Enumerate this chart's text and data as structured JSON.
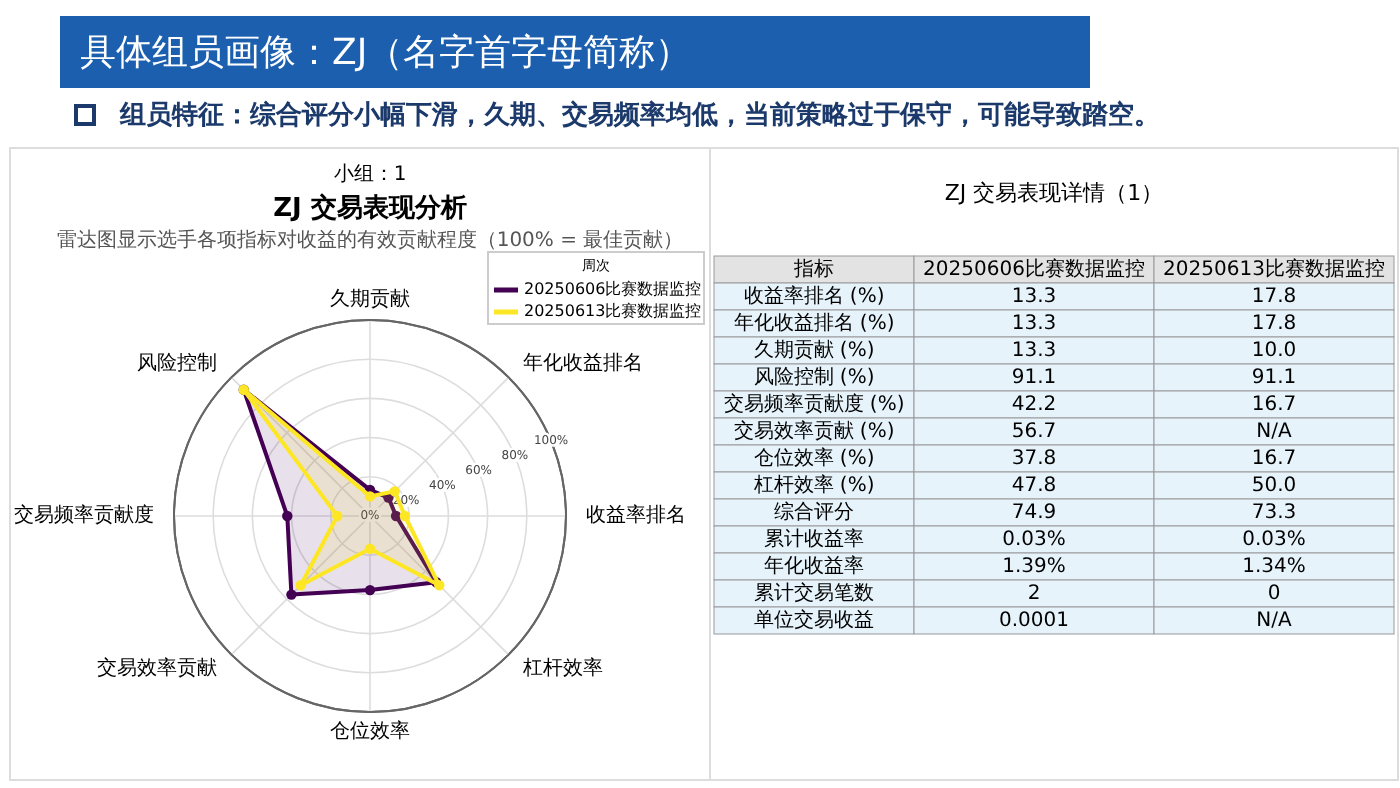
{
  "chart_data": [
    {
      "type": "radar",
      "title": "ZJ 交易表现分析",
      "subtitle": "雷达图显示选手各项指标对收益的有效贡献程度（100% = 最佳贡献）",
      "annotations": [
        "具体组员画像：ZJ（名字首字母简称）",
        "组员特征：综合评分小幅下滑，久期、交易频率均低，当前策略过于保守，可能导致踏空。",
        "小组：1"
      ],
      "categories": [
        "久期贡献",
        "年化收益排名",
        "收益率排名",
        "杠杆效率",
        "仓位效率",
        "交易效率贡献",
        "交易频率贡献度",
        "风险控制"
      ],
      "series": [
        {
          "name": "20250606比赛数据监控",
          "color": "#440154",
          "values": [
            13.3,
            13.3,
            13.3,
            47.8,
            37.8,
            56.7,
            42.2,
            91.1
          ]
        },
        {
          "name": "20250613比赛数据监控",
          "color": "#fde725",
          "values": [
            10.0,
            17.8,
            17.8,
            50.0,
            16.7,
            50,
            16.7,
            91.1
          ]
        }
      ],
      "ylim": [
        0,
        100
      ],
      "yticks": [
        {
          "value": 0,
          "label": "0%"
        },
        {
          "value": 20,
          "label": "20%"
        },
        {
          "value": 40,
          "label": "40%"
        },
        {
          "value": 60,
          "label": "60%"
        },
        {
          "value": 80,
          "label": "80%"
        },
        {
          "value": 100,
          "label": "100%"
        }
      ],
      "grid": true,
      "legend": "top right",
      "legend_title": "周次",
      "marker": "circle"
    },
    {
      "type": "other",
      "title": "ZJ 交易表现详情（1）",
      "categories": [
        "指标",
        "20250606比赛数据监控",
        "20250613比赛数据监控"
      ],
      "y_categories": [
        "收益率排名 (%)",
        "年化收益排名 (%)",
        "久期贡献 (%)",
        "风险控制 (%)",
        "交易频率贡献度 (%)",
        "交易效率贡献 (%)",
        "仓位效率 (%)",
        "杠杆效率 (%)",
        "综合评分",
        "累计收益率",
        "年化收益率",
        "累计交易笔数",
        "单位交易收益"
      ],
      "cell_labels": [
        [
          "13.3",
          "17.8"
        ],
        [
          "13.3",
          "17.8"
        ],
        [
          "13.3",
          "10.0"
        ],
        [
          "91.1",
          "91.1"
        ],
        [
          "42.2",
          "16.7"
        ],
        [
          "56.7",
          "N/A"
        ],
        [
          "37.8",
          "16.7"
        ],
        [
          "47.8",
          "50.0"
        ],
        [
          "74.9",
          "73.3"
        ],
        [
          "0.03%",
          "0.03%"
        ],
        [
          "1.39%",
          "1.34%"
        ],
        [
          "2",
          "0"
        ],
        [
          "0.0001",
          "N/A"
        ]
      ]
    }
  ]
}
